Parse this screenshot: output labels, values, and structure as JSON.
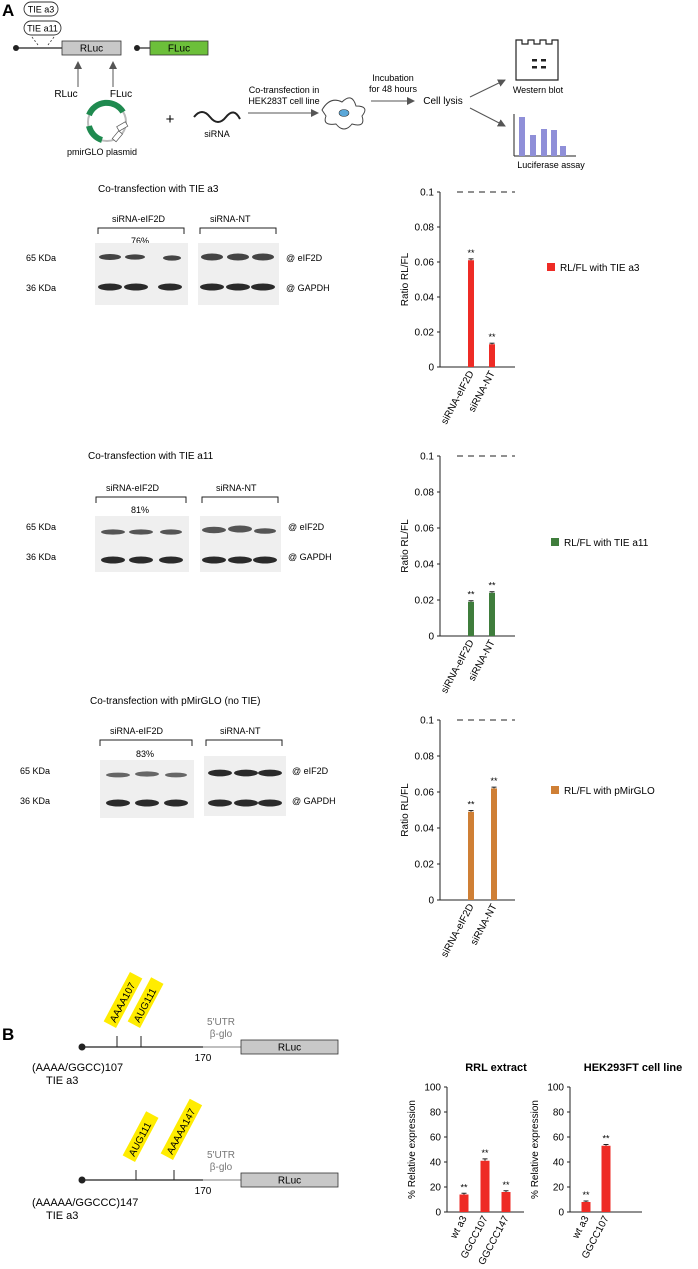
{
  "panel_a": {
    "label": "A",
    "schematic": {
      "tie_a3": "TIE a3",
      "tie_a11": "TIE a11",
      "rluc_box": "RLuc",
      "fluc_box": "FLuc",
      "rluc_label": "RLuc",
      "fluc_label": "FLuc",
      "plasmid": "pmirGLO plasmid",
      "plus": "+",
      "sirna": "siRNA",
      "cotransfection_line1": "Co-transfection in",
      "cotransfection_line2": "HEK283T cell line",
      "incubation_line1": "Incubation",
      "incubation_line2": "for 48 hours",
      "cell_lysis": "Cell lysis",
      "western_blot": "Western blot",
      "luciferase_assay": "Luciferase assay"
    },
    "blots": [
      {
        "title": "Co-transfection with TIE a3",
        "group1": "siRNA-eIF2D",
        "group2": "siRNA-NT",
        "knockdown": "76%",
        "mw1": "65 KDa",
        "mw2": "36 KDa",
        "band1": "@ eIF2D",
        "band2": "@ GAPDH"
      },
      {
        "title": "Co-transfection with TIE a11",
        "group1": "siRNA-eIF2D",
        "group2": "siRNA-NT",
        "knockdown": "81%",
        "mw1": "65 KDa",
        "mw2": "36 KDa",
        "band1": "@ eIF2D",
        "band2": "@ GAPDH"
      },
      {
        "title": "Co-transfection with pMirGLO (no TIE)",
        "group1": "siRNA-eIF2D",
        "group2": "siRNA-NT",
        "knockdown": "83%",
        "mw1": "65 KDa",
        "mw2": "36 KDa",
        "band1": "@ eIF2D",
        "band2": "@ GAPDH"
      }
    ]
  },
  "panel_b": {
    "label": "B",
    "constructs": [
      {
        "tags": [
          "AAAA107",
          "AUG111"
        ],
        "utr_line1": "5'UTR",
        "utr_line2": "β-glo",
        "position": "170",
        "box": "RLuc",
        "name_line1": "(AAAA/GGCC)107",
        "name_line2": "TIE a3"
      },
      {
        "tags": [
          "AUG111",
          "AAAAA147"
        ],
        "utr_line1": "5'UTR",
        "utr_line2": "β-glo",
        "position": "170",
        "box": "RLuc",
        "name_line1": "(AAAAA/GGCCC)147",
        "name_line2": "TIE a3"
      }
    ]
  },
  "colors": {
    "red": "#ee2b25",
    "green": "#3f7d3c",
    "orange": "#cf7f35",
    "yellow": "#ffec00",
    "box_gray": "#c8c8c8",
    "fluc_green": "#6cbf3a",
    "plasmid_green": "#1f8a4f",
    "bar_purple": "#8f8fd8"
  },
  "chart_data": [
    {
      "type": "bar",
      "title": "",
      "ylabel": "Ratio RL/FL",
      "ylim": [
        0,
        0.1
      ],
      "yticks": [
        0,
        0.02,
        0.04,
        0.06,
        0.08,
        0.1
      ],
      "dashed_line_at": 0.1,
      "categories": [
        "siRNA-eIF2D",
        "siRNA-NT"
      ],
      "values": [
        0.061,
        0.013
      ],
      "errors": [
        0.0008,
        0.0006
      ],
      "significance": [
        "**",
        "**"
      ],
      "legend": "RL/FL with TIE a3",
      "color": "#ee2b25"
    },
    {
      "type": "bar",
      "title": "",
      "ylabel": "Ratio RL/FL",
      "ylim": [
        0,
        0.1
      ],
      "yticks": [
        0,
        0.02,
        0.04,
        0.06,
        0.08,
        0.1
      ],
      "dashed_line_at": 0.1,
      "categories": [
        "siRNA-eIF2D",
        "siRNA-NT"
      ],
      "values": [
        0.019,
        0.024
      ],
      "errors": [
        0.0006,
        0.0006
      ],
      "significance": [
        "**",
        "**"
      ],
      "legend": "RL/FL with TIE a11",
      "color": "#3f7d3c"
    },
    {
      "type": "bar",
      "title": "",
      "ylabel": "Ratio RL/FL",
      "ylim": [
        0,
        0.1
      ],
      "yticks": [
        0,
        0.02,
        0.04,
        0.06,
        0.08,
        0.1
      ],
      "dashed_line_at": 0.1,
      "categories": [
        "siRNA-eIF2D",
        "siRNA-NT"
      ],
      "values": [
        0.049,
        0.062
      ],
      "errors": [
        0.0007,
        0.0007
      ],
      "significance": [
        "**",
        "**"
      ],
      "legend": "RL/FL with pMirGLO",
      "color": "#cf7f35"
    },
    {
      "type": "bar",
      "title": "RRL extract",
      "ylabel": "% Relative expression",
      "ylim": [
        0,
        100
      ],
      "yticks": [
        0,
        20,
        40,
        60,
        80,
        100
      ],
      "categories": [
        "wt a3",
        "GGCC107",
        "GGCCC147"
      ],
      "values": [
        14,
        41,
        16
      ],
      "errors": [
        1,
        1.5,
        1
      ],
      "significance": [
        "**",
        "**",
        "**"
      ],
      "color": "#ee2b25"
    },
    {
      "type": "bar",
      "title": "HEK293FT cell line",
      "ylabel": "% Relative expression",
      "ylim": [
        0,
        100
      ],
      "yticks": [
        0,
        20,
        40,
        60,
        80,
        100
      ],
      "categories": [
        "wt a3",
        "GGCC107"
      ],
      "values": [
        8,
        53
      ],
      "errors": [
        0.8,
        1
      ],
      "significance": [
        "**",
        "**"
      ],
      "color": "#ee2b25"
    }
  ]
}
